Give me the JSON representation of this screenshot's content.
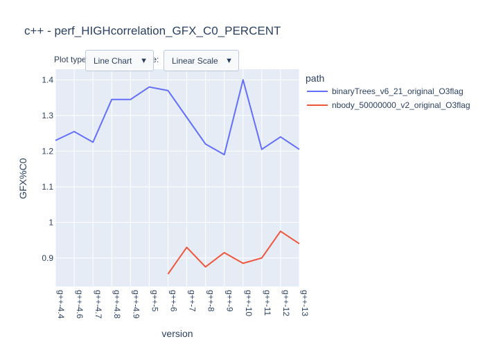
{
  "controls": {
    "plot_type_label": "Plot type:",
    "plot_type_value": "Line Chart",
    "scale_label": "Scale:",
    "scale_value": "Linear Scale",
    "dropdown_arrow": "▼"
  },
  "legend": {
    "title": "path"
  },
  "colors": {
    "plot_background": "#e5ecf6",
    "grid": "#ffffff",
    "series": [
      "#636efa",
      "#ef553b"
    ]
  },
  "chart_data": {
    "type": "line",
    "title": "c++ - perf_HIGHcorrelation_GFX_C0_PERCENT",
    "xlabel": "version",
    "ylabel": "GFX%C0",
    "categories": [
      "g++-4.4",
      "g++-4.6",
      "g++-4.7",
      "g++-4.8",
      "g++-4.9",
      "g++-5",
      "g++-6",
      "g++-7",
      "g++-8",
      "g++-9",
      "g++-10",
      "g++-11",
      "g++-12",
      "g++-13"
    ],
    "y_ticks": [
      0.9,
      1,
      1.1,
      1.2,
      1.3,
      1.4
    ],
    "y_tick_labels": [
      "0.9",
      "1",
      "1.1",
      "1.2",
      "1.3",
      "1.4"
    ],
    "ylim": [
      0.82,
      1.43
    ],
    "grid": true,
    "legend_position": "right",
    "series": [
      {
        "name": "binaryTrees_v6_21_original_O3flag",
        "values": [
          1.23,
          1.255,
          1.225,
          1.345,
          1.345,
          1.38,
          1.37,
          1.295,
          1.22,
          1.19,
          1.4,
          1.205,
          1.24,
          1.205
        ]
      },
      {
        "name": "nbody_50000000_v2_original_O3flag",
        "values": [
          null,
          null,
          null,
          null,
          null,
          null,
          0.855,
          0.93,
          0.875,
          0.915,
          0.885,
          0.9,
          0.975,
          0.94
        ]
      }
    ]
  }
}
